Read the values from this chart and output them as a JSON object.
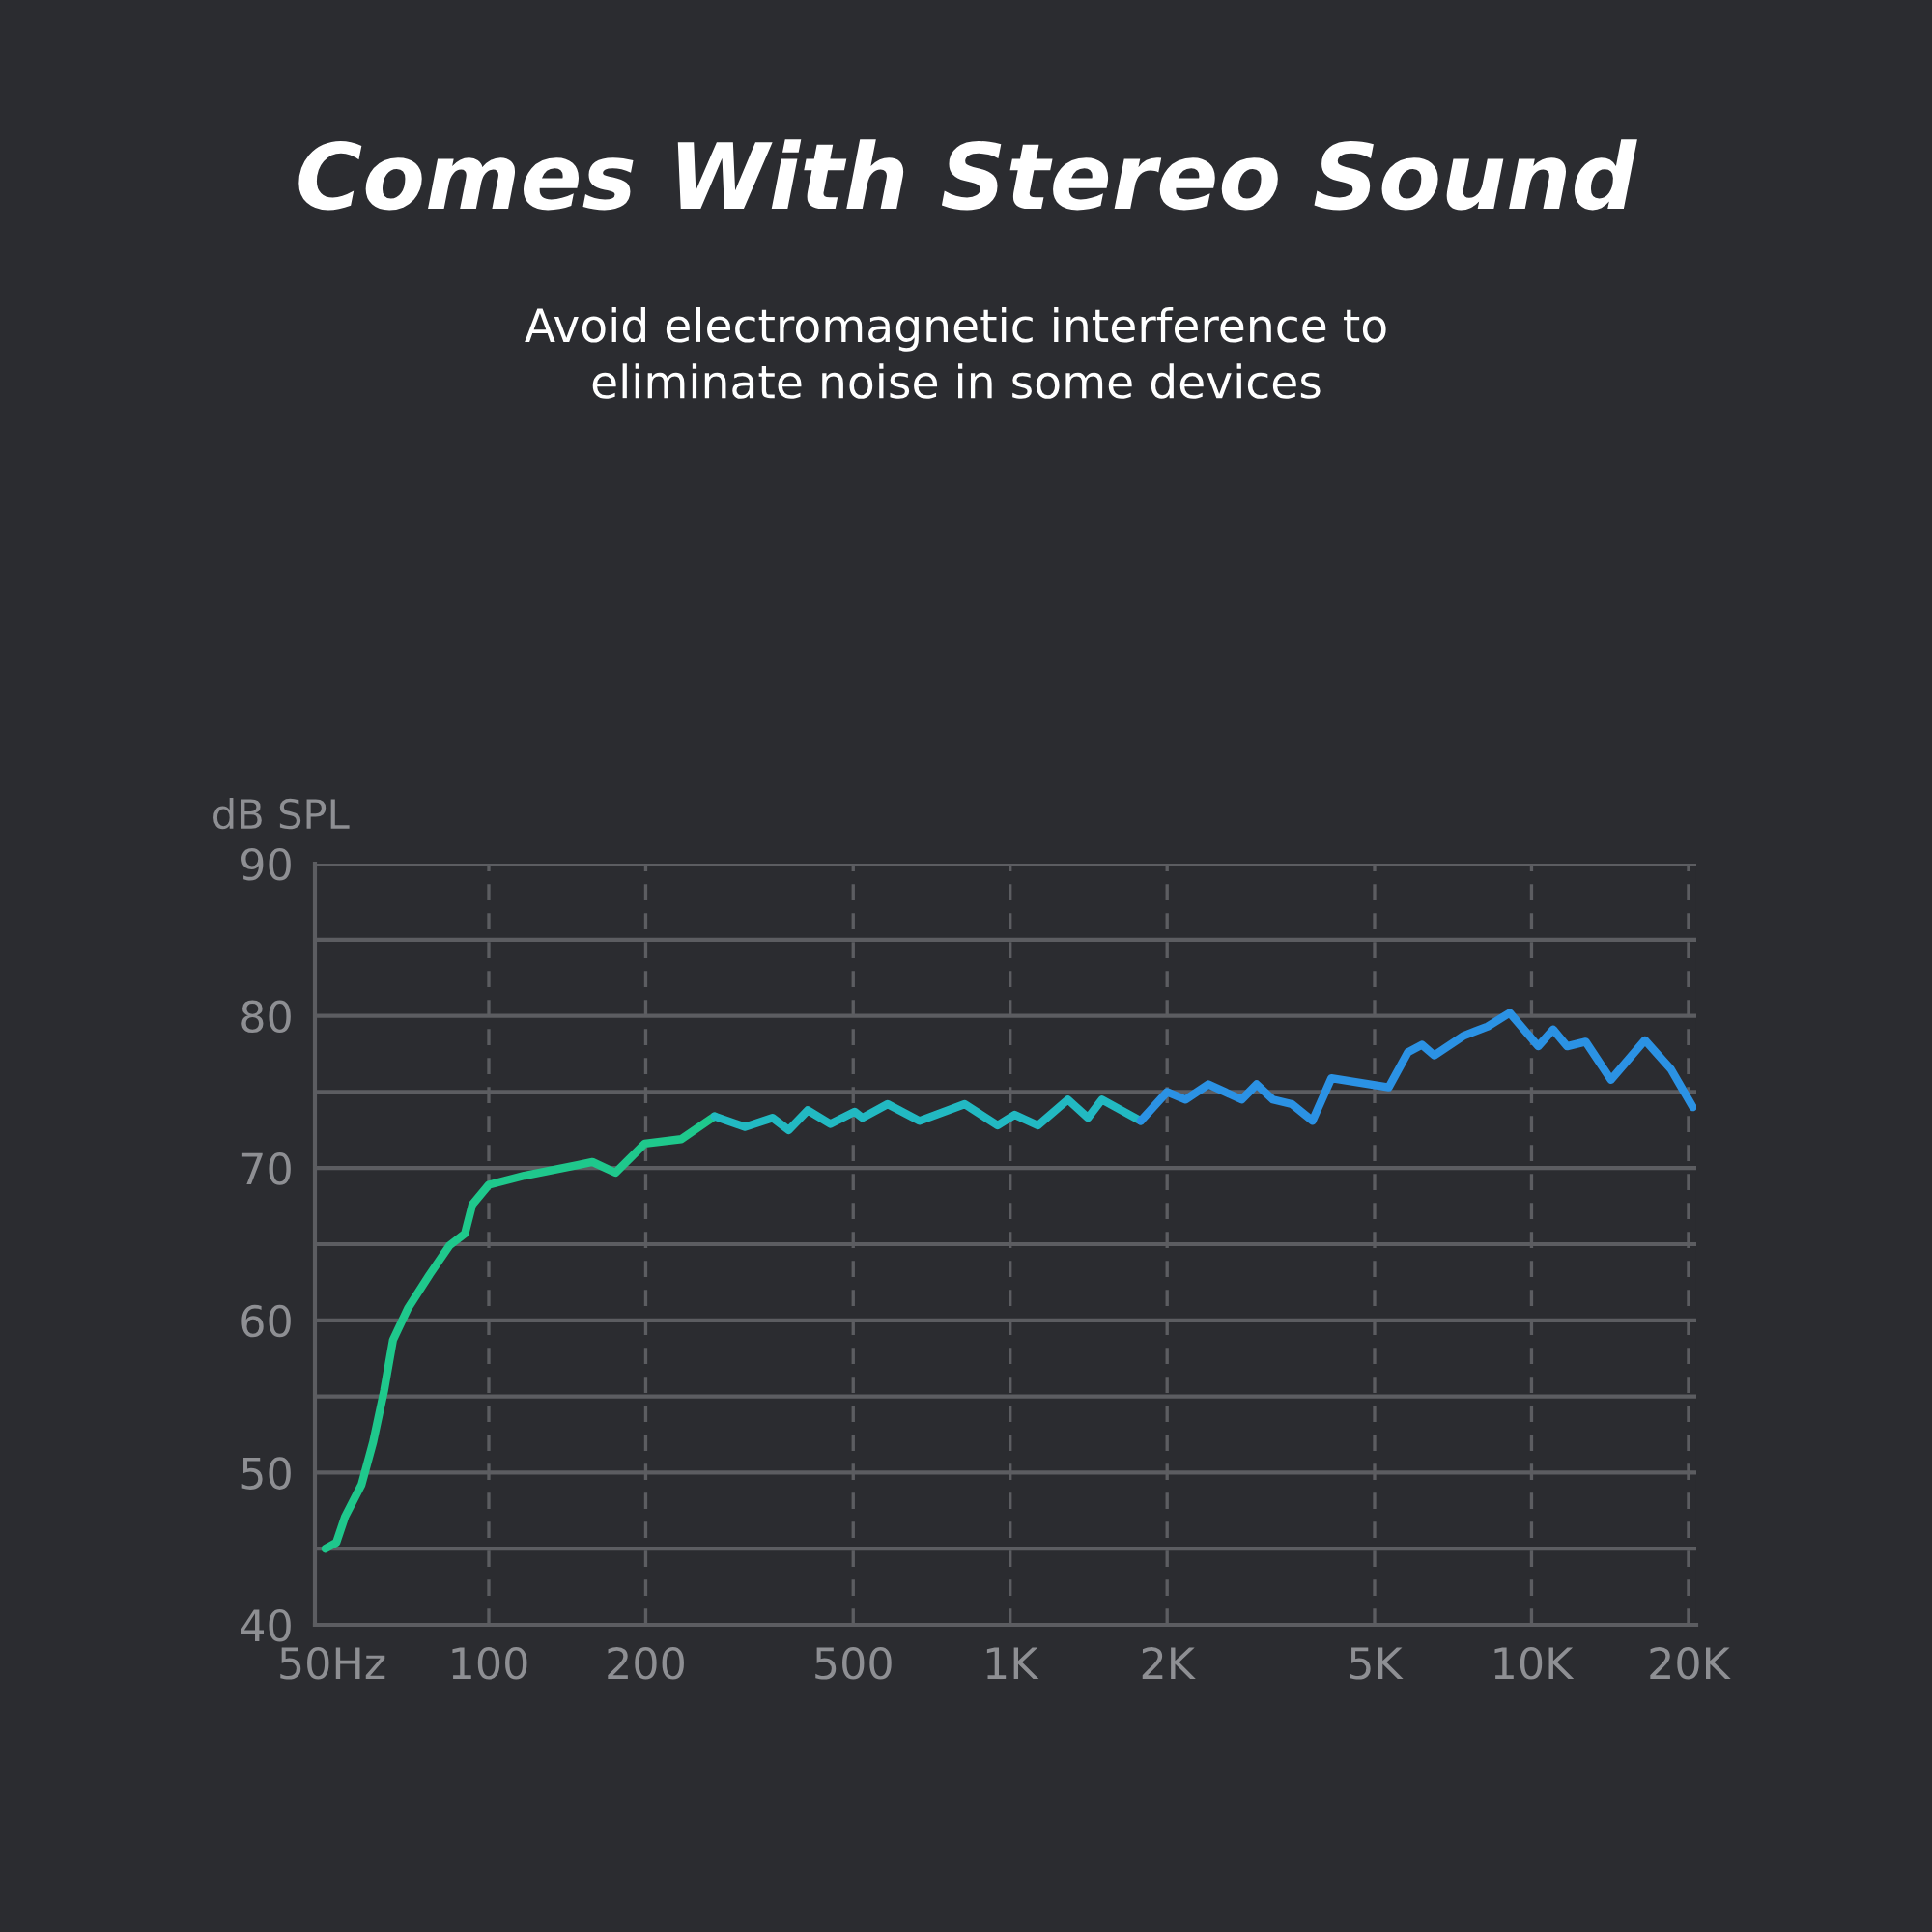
{
  "chart_data": {
    "type": "line",
    "title": "Comes With Stereo Sound",
    "subtitle": "Avoid electromagnetic interference to\neliminate noise in some devices",
    "ylabel": "dB SPL",
    "series": [
      {
        "color": "#1fc88c",
        "x": [
          48.6,
          51,
          53,
          57,
          60,
          63,
          65.5,
          70,
          77,
          84,
          90,
          93,
          100,
          117,
          148,
          158,
          175,
          199,
          234,
          271
        ],
        "values": [
          45.0,
          45.4,
          47.1,
          49.2,
          52.0,
          55.4,
          58.7,
          60.8,
          63.0,
          64.9,
          65.7,
          67.6,
          68.9,
          69.5,
          70.2,
          70.4,
          69.7,
          71.6,
          71.9,
          73.4
        ]
      },
      {
        "color": "#22b9c2",
        "x": [
          271,
          310,
          350,
          376,
          409,
          452,
          503,
          521,
          582,
          670,
          818,
          946,
          1020,
          1130,
          1290,
          1410,
          1500,
          1780
        ],
        "values": [
          73.4,
          72.7,
          73.3,
          72.5,
          73.8,
          72.9,
          73.7,
          73.3,
          74.2,
          73.1,
          74.2,
          72.8,
          73.5,
          72.8,
          74.5,
          73.3,
          74.5,
          73.1
        ]
      },
      {
        "color": "#2b92e4",
        "x": [
          1780,
          2000,
          2170,
          2400,
          2780,
          2970,
          3190,
          3470,
          3800,
          4130,
          5320,
          5790,
          6160,
          6510,
          7420,
          8240,
          9080,
          10300,
          11000,
          11700,
          12700,
          14200,
          16500,
          18500,
          20400
        ],
        "values": [
          73.1,
          75.0,
          74.5,
          75.5,
          74.5,
          75.5,
          74.5,
          74.2,
          73.1,
          75.9,
          75.3,
          77.6,
          78.1,
          77.4,
          78.7,
          79.3,
          80.2,
          78.0,
          79.1,
          78.0,
          78.3,
          75.8,
          78.4,
          76.5,
          74.0
        ]
      }
    ],
    "xlim": [
      46.4,
      20700
    ],
    "log": "x",
    "xticks": [
      {
        "value": 50,
        "label": "50Hz"
      },
      100,
      200,
      500,
      {
        "value": 1000,
        "label": "1K"
      },
      {
        "value": 2000,
        "label": "2K"
      },
      {
        "value": 5000,
        "label": "5K"
      },
      {
        "value": 10000,
        "label": "10K"
      },
      {
        "value": 20000,
        "label": "20K"
      }
    ],
    "ylim": [
      40,
      90
    ],
    "yticks": [
      40,
      {
        "value": 45,
        "label": null
      },
      50,
      {
        "value": 55,
        "label": null
      },
      60,
      {
        "value": 65,
        "label": null
      },
      70,
      {
        "value": 75,
        "label": null
      },
      80,
      {
        "value": 85,
        "label": null
      },
      90
    ],
    "grid": true,
    "line_style": "solid",
    "marker": "none"
  }
}
